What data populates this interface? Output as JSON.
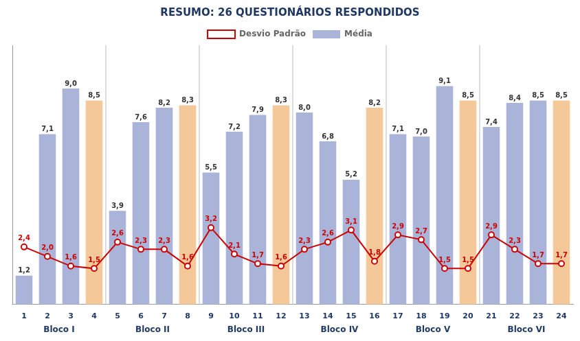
{
  "chart_data": {
    "type": "bar",
    "title": "RESUMO: 26 QUESTIONÁRIOS RESPONDIDOS",
    "categories": [
      "1",
      "2",
      "3",
      "4",
      "5",
      "6",
      "7",
      "8",
      "9",
      "10",
      "11",
      "12",
      "13",
      "14",
      "15",
      "16",
      "17",
      "18",
      "19",
      "20",
      "21",
      "22",
      "23",
      "24"
    ],
    "series": [
      {
        "name": "Média",
        "type": "bar",
        "colors": [
          "#aab4d8",
          "#aab4d8",
          "#aab4d8",
          "#f5c89a",
          "#aab4d8",
          "#aab4d8",
          "#aab4d8",
          "#f5c89a",
          "#aab4d8",
          "#aab4d8",
          "#aab4d8",
          "#f5c89a",
          "#aab4d8",
          "#aab4d8",
          "#aab4d8",
          "#f5c89a",
          "#aab4d8",
          "#aab4d8",
          "#aab4d8",
          "#f5c89a",
          "#aab4d8",
          "#aab4d8",
          "#aab4d8",
          "#f5c89a"
        ],
        "values": [
          1.2,
          7.1,
          9.0,
          8.5,
          3.9,
          7.6,
          8.2,
          8.3,
          5.5,
          7.2,
          7.9,
          8.3,
          8.0,
          6.8,
          5.2,
          8.2,
          7.1,
          7.0,
          9.1,
          8.5,
          7.4,
          8.4,
          8.5,
          8.5
        ],
        "value_labels": [
          "1,2",
          "7,1",
          "9,0",
          "8,5",
          "3,9",
          "7,6",
          "8,2",
          "8,3",
          "5,5",
          "7,2",
          "7,9",
          "8,3",
          "8,0",
          "6,8",
          "5,2",
          "8,2",
          "7,1",
          "7,0",
          "9,1",
          "8,5",
          "7,4",
          "8,4",
          "8,5",
          "8,5"
        ]
      },
      {
        "name": "Desvio Padrão",
        "type": "line",
        "color": "#cc0000",
        "marker": "circle",
        "line_style": "solid",
        "values": [
          2.4,
          2.0,
          1.6,
          1.5,
          2.6,
          2.3,
          2.3,
          1.6,
          3.2,
          2.1,
          1.7,
          1.6,
          2.3,
          2.6,
          3.1,
          1.8,
          2.9,
          2.7,
          1.5,
          1.5,
          2.9,
          2.3,
          1.7,
          1.7
        ],
        "value_labels": [
          "2,4",
          "2,0",
          "1,6",
          "1,5",
          "2,6",
          "2,3",
          "2,3",
          "1,6",
          "3,2",
          "2,1",
          "1,7",
          "1,6",
          "2,3",
          "2,6",
          "3,1",
          "1,8",
          "2,9",
          "2,7",
          "1,5",
          "1,5",
          "2,9",
          "2,3",
          "1,7",
          "1,7"
        ]
      }
    ],
    "annotations": [
      {
        "text": "Bloco I",
        "from": "1",
        "to": "4"
      },
      {
        "text": "Bloco II",
        "from": "5",
        "to": "8"
      },
      {
        "text": "Bloco III",
        "from": "9",
        "to": "12"
      },
      {
        "text": "Bloco IV",
        "from": "13",
        "to": "16"
      },
      {
        "text": "Bloco V",
        "from": "17",
        "to": "20"
      },
      {
        "text": "Bloco VI",
        "from": "21",
        "to": "24"
      }
    ],
    "ylim": [
      0,
      10.8
    ],
    "tick_labels": "x",
    "grid": false,
    "legend": "top",
    "data_labels": true
  }
}
